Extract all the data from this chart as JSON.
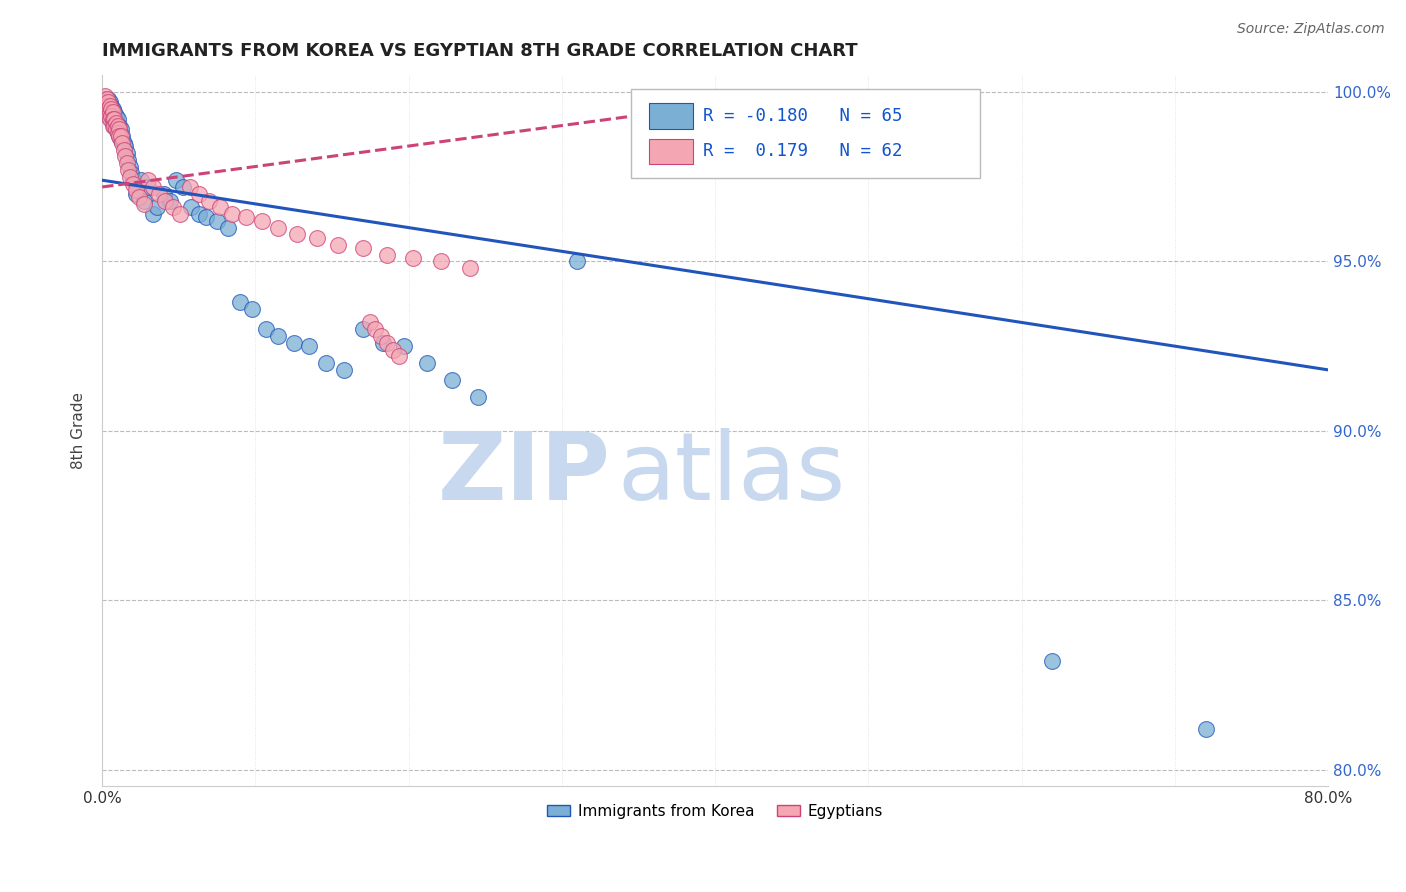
{
  "title": "IMMIGRANTS FROM KOREA VS EGYPTIAN 8TH GRADE CORRELATION CHART",
  "source": "Source: ZipAtlas.com",
  "ylabel": "8th Grade",
  "x_min": 0.0,
  "x_max": 0.8,
  "y_min": 0.795,
  "y_max": 1.005,
  "x_ticks": [
    0.0,
    0.1,
    0.2,
    0.3,
    0.4,
    0.5,
    0.6,
    0.7,
    0.8
  ],
  "x_tick_labels": [
    "0.0%",
    "",
    "",
    "",
    "",
    "",
    "",
    "",
    "80.0%"
  ],
  "y_ticks": [
    0.8,
    0.85,
    0.9,
    0.95,
    1.0
  ],
  "y_tick_labels": [
    "80.0%",
    "85.0%",
    "90.0%",
    "95.0%",
    "100.0%"
  ],
  "legend_r_blue": "-0.180",
  "legend_n_blue": "65",
  "legend_r_pink": "0.179",
  "legend_n_pink": "62",
  "blue_color": "#7BAFD4",
  "pink_color": "#F4A7B3",
  "line_blue": "#2255BB",
  "line_pink": "#CC4477",
  "watermark_zip": "ZIP",
  "watermark_atlas": "atlas",
  "korea_x": [
    0.002,
    0.003,
    0.003,
    0.004,
    0.004,
    0.004,
    0.005,
    0.005,
    0.005,
    0.006,
    0.006,
    0.006,
    0.007,
    0.007,
    0.008,
    0.008,
    0.009,
    0.009,
    0.01,
    0.01,
    0.01,
    0.011,
    0.011,
    0.012,
    0.012,
    0.013,
    0.014,
    0.015,
    0.016,
    0.017,
    0.018,
    0.019,
    0.02,
    0.022,
    0.025,
    0.027,
    0.03,
    0.033,
    0.036,
    0.04,
    0.044,
    0.048,
    0.053,
    0.058,
    0.063,
    0.068,
    0.075,
    0.082,
    0.09,
    0.098,
    0.107,
    0.115,
    0.125,
    0.135,
    0.146,
    0.158,
    0.17,
    0.183,
    0.197,
    0.212,
    0.228,
    0.245,
    0.31,
    0.62,
    0.72
  ],
  "korea_y": [
    0.998,
    0.997,
    0.995,
    0.998,
    0.996,
    0.994,
    0.997,
    0.995,
    0.993,
    0.996,
    0.994,
    0.992,
    0.995,
    0.993,
    0.994,
    0.991,
    0.993,
    0.99,
    0.992,
    0.99,
    0.988,
    0.99,
    0.987,
    0.989,
    0.986,
    0.987,
    0.985,
    0.984,
    0.982,
    0.98,
    0.978,
    0.976,
    0.974,
    0.97,
    0.974,
    0.968,
    0.972,
    0.964,
    0.966,
    0.97,
    0.968,
    0.974,
    0.972,
    0.966,
    0.964,
    0.963,
    0.962,
    0.96,
    0.938,
    0.936,
    0.93,
    0.928,
    0.926,
    0.925,
    0.92,
    0.918,
    0.93,
    0.926,
    0.925,
    0.92,
    0.915,
    0.91,
    0.95,
    0.832,
    0.812
  ],
  "egypt_x": [
    0.002,
    0.002,
    0.003,
    0.003,
    0.004,
    0.004,
    0.004,
    0.005,
    0.005,
    0.005,
    0.006,
    0.006,
    0.007,
    0.007,
    0.007,
    0.008,
    0.008,
    0.009,
    0.009,
    0.01,
    0.01,
    0.011,
    0.011,
    0.012,
    0.013,
    0.014,
    0.015,
    0.016,
    0.017,
    0.018,
    0.02,
    0.022,
    0.024,
    0.027,
    0.03,
    0.033,
    0.037,
    0.041,
    0.046,
    0.051,
    0.057,
    0.063,
    0.07,
    0.077,
    0.085,
    0.094,
    0.104,
    0.115,
    0.127,
    0.14,
    0.154,
    0.17,
    0.186,
    0.203,
    0.221,
    0.24,
    0.175,
    0.178,
    0.182,
    0.186,
    0.19,
    0.194
  ],
  "egypt_y": [
    0.999,
    0.997,
    0.998,
    0.996,
    0.997,
    0.995,
    0.993,
    0.996,
    0.994,
    0.992,
    0.995,
    0.993,
    0.994,
    0.992,
    0.99,
    0.992,
    0.99,
    0.991,
    0.989,
    0.99,
    0.988,
    0.989,
    0.987,
    0.987,
    0.985,
    0.983,
    0.981,
    0.979,
    0.977,
    0.975,
    0.973,
    0.971,
    0.969,
    0.967,
    0.974,
    0.972,
    0.97,
    0.968,
    0.966,
    0.964,
    0.972,
    0.97,
    0.968,
    0.966,
    0.964,
    0.963,
    0.962,
    0.96,
    0.958,
    0.957,
    0.955,
    0.954,
    0.952,
    0.951,
    0.95,
    0.948,
    0.932,
    0.93,
    0.928,
    0.926,
    0.924,
    0.922
  ]
}
